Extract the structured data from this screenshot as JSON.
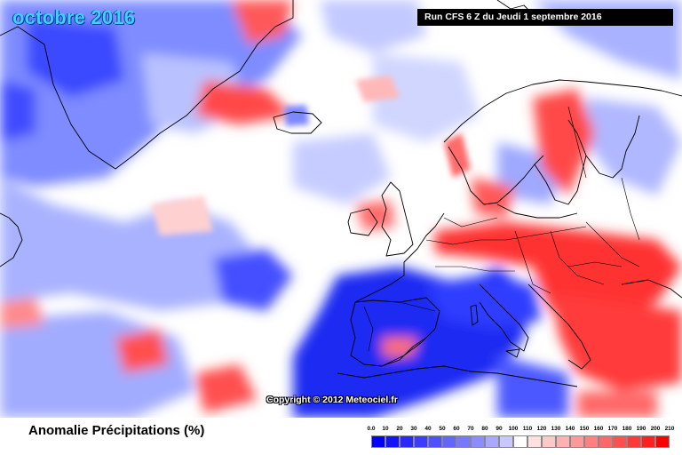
{
  "map": {
    "title": "octobre 2016",
    "run_info": "Run CFS 6 Z du Jeudi 1 septembre 2016",
    "copyright": "Copyright © 2012 Meteociel.fr",
    "land_outline_color": "#000000",
    "field_colors": {
      "strong_dry": "#1a1aff",
      "dry": "#5a6aff",
      "slightly_dry": "#b7c0ff",
      "normal": "#ffffff",
      "slightly_wet": "#ffb8b8",
      "wet": "#ff5a5a",
      "strong_wet": "#ff1a1a"
    }
  },
  "legend": {
    "title": "Anomalie Précipitations (%)",
    "scale_labels": [
      "0.0",
      "10",
      "20",
      "30",
      "40",
      "50",
      "60",
      "70",
      "80",
      "90",
      "100",
      "110",
      "120",
      "130",
      "140",
      "150",
      "160",
      "170",
      "180",
      "190",
      "200",
      "210"
    ],
    "scale_colors": [
      "#0000ff",
      "#1414ff",
      "#2828ff",
      "#3c3cff",
      "#5050ff",
      "#6464ff",
      "#7878ff",
      "#8c8cff",
      "#a8a8ff",
      "#c8c8ff",
      "#ffffff",
      "#ffe0e0",
      "#ffc8c8",
      "#ffb0b0",
      "#ff9898",
      "#ff8080",
      "#ff6868",
      "#ff5050",
      "#ff3838",
      "#ff2020",
      "#ff0000"
    ]
  }
}
